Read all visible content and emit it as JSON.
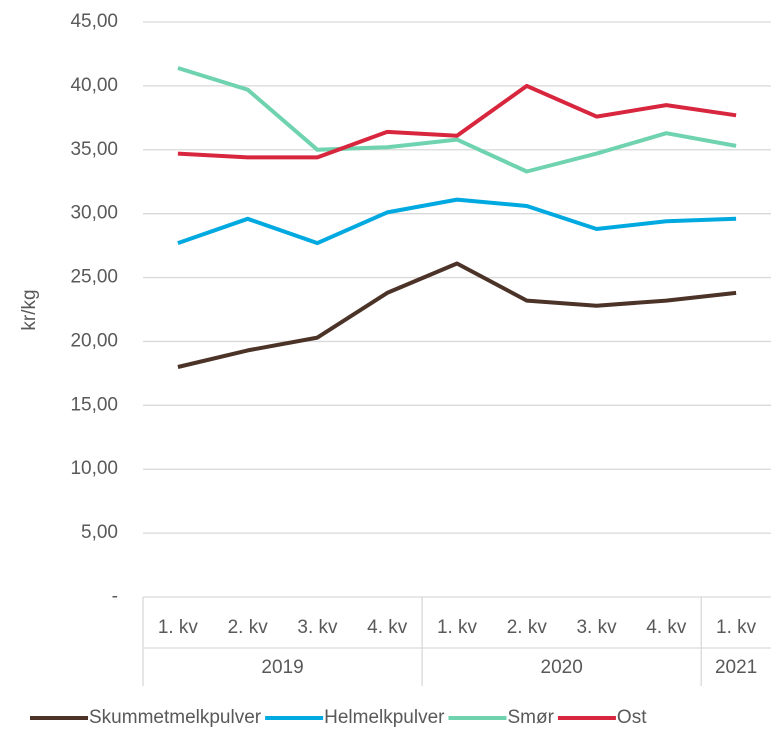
{
  "chart_data": {
    "type": "line",
    "y_label": "kr/kg",
    "categories": [
      "1. kv",
      "2. kv",
      "3. kv",
      "4. kv",
      "1. kv",
      "2. kv",
      "3. kv",
      "4. kv",
      "1. kv"
    ],
    "category_years": [
      "2019",
      "2019",
      "2019",
      "2019",
      "2020",
      "2020",
      "2020",
      "2020",
      "2021"
    ],
    "series": [
      {
        "name": "Skummetmelkpulver",
        "color": "#4b3328",
        "values": [
          18.0,
          19.3,
          20.3,
          23.8,
          26.1,
          23.2,
          22.8,
          23.2,
          23.8
        ]
      },
      {
        "name": "Helmelkpulver",
        "color": "#00a9e0",
        "values": [
          27.7,
          29.6,
          27.7,
          30.1,
          31.1,
          30.6,
          28.8,
          29.4,
          29.6
        ]
      },
      {
        "name": "Smør",
        "color": "#6fd3b0",
        "values": [
          41.4,
          39.7,
          35.0,
          35.2,
          35.8,
          33.3,
          34.7,
          36.3,
          35.3
        ]
      },
      {
        "name": "Ost",
        "color": "#d7263d",
        "values": [
          34.7,
          34.4,
          34.4,
          36.4,
          36.1,
          40.0,
          37.6,
          38.5,
          37.7
        ]
      }
    ],
    "ylim": [
      0,
      45
    ],
    "yticks": [
      {
        "value": 0,
        "label": "-"
      },
      {
        "value": 5,
        "label": "5,00"
      },
      {
        "value": 10,
        "label": "10,00"
      },
      {
        "value": 15,
        "label": "15,00"
      },
      {
        "value": 20,
        "label": "20,00"
      },
      {
        "value": 25,
        "label": "25,00"
      },
      {
        "value": 30,
        "label": "30,00"
      },
      {
        "value": 35,
        "label": "35,00"
      },
      {
        "value": 40,
        "label": "40,00"
      },
      {
        "value": 45,
        "label": "45,00"
      }
    ],
    "grid": true,
    "legend": "bottom"
  }
}
